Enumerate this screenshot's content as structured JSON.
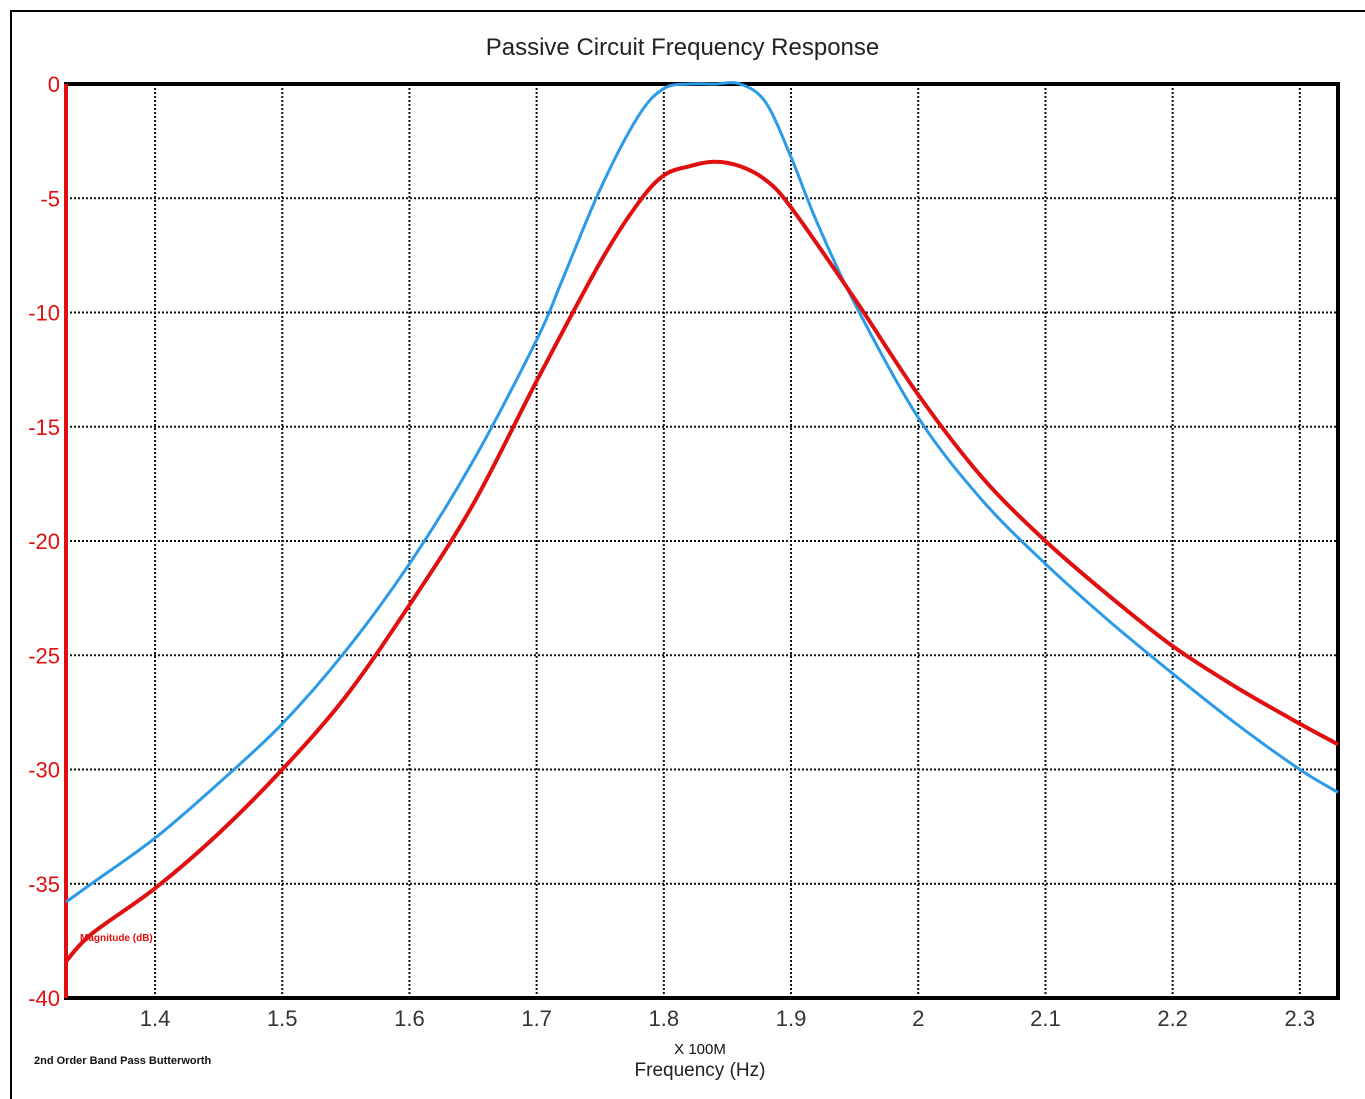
{
  "chart_data": {
    "type": "line",
    "title": "Passive Circuit Frequency Response",
    "xlabel": "Frequency (Hz)",
    "x_unit_label": "X 100M",
    "ylabel": "Magnitude (dB)",
    "note": "2nd Order Band Pass Butterworth",
    "xlim": [
      1.33,
      2.33
    ],
    "ylim": [
      -40,
      0
    ],
    "x_ticks": [
      "1.4",
      "1.5",
      "1.6",
      "1.7",
      "1.8",
      "1.9",
      "2",
      "2.1",
      "2.2",
      "2.3"
    ],
    "y_ticks": [
      "0",
      "-5",
      "-10",
      "-15",
      "-20",
      "-25",
      "-30",
      "-35",
      "-40"
    ],
    "grid": true,
    "series": [
      {
        "color": "#2b9be8",
        "x": [
          1.33,
          1.35,
          1.4,
          1.45,
          1.5,
          1.55,
          1.6,
          1.65,
          1.7,
          1.72,
          1.75,
          1.78,
          1.8,
          1.82,
          1.84,
          1.86,
          1.88,
          1.9,
          1.92,
          1.95,
          2.0,
          2.05,
          2.1,
          2.15,
          2.2,
          2.25,
          2.3,
          2.33
        ],
        "y": [
          -35.8,
          -35.0,
          -33.0,
          -30.6,
          -28.0,
          -24.8,
          -21.0,
          -16.5,
          -11.2,
          -8.6,
          -4.6,
          -1.4,
          -0.2,
          0,
          0,
          0,
          -0.8,
          -3.2,
          -6.0,
          -9.6,
          -14.6,
          -18.2,
          -21.0,
          -23.5,
          -25.8,
          -28.0,
          -30.0,
          -31.0
        ]
      },
      {
        "color": "#e01010",
        "x": [
          1.33,
          1.35,
          1.4,
          1.45,
          1.5,
          1.55,
          1.6,
          1.65,
          1.7,
          1.75,
          1.78,
          1.8,
          1.82,
          1.84,
          1.86,
          1.88,
          1.9,
          1.95,
          2.0,
          2.05,
          2.1,
          2.15,
          2.2,
          2.25,
          2.3,
          2.33
        ],
        "y": [
          -38.4,
          -37.2,
          -35.2,
          -32.8,
          -30.0,
          -26.8,
          -22.8,
          -18.4,
          -13.0,
          -7.8,
          -5.2,
          -4.0,
          -3.6,
          -3.4,
          -3.6,
          -4.2,
          -5.4,
          -9.4,
          -13.6,
          -17.2,
          -20.0,
          -22.4,
          -24.6,
          -26.4,
          -28.0,
          -28.9
        ]
      }
    ]
  }
}
